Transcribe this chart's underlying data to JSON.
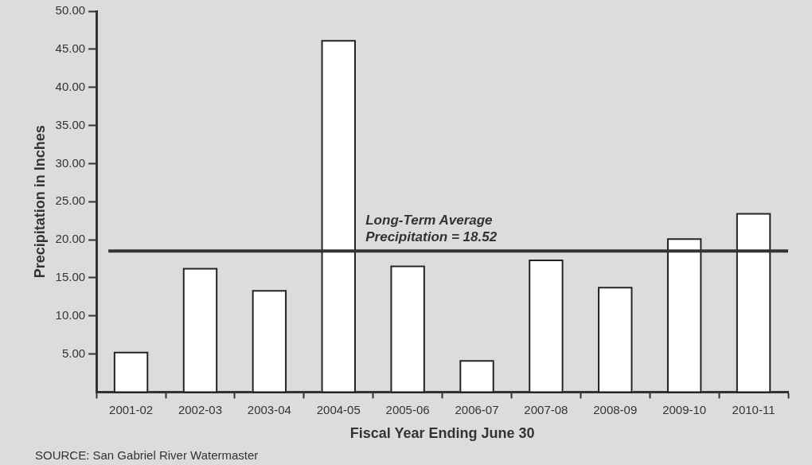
{
  "chart_data": {
    "type": "bar",
    "xlabel": "Fiscal Year Ending June 30",
    "ylabel": "Precipitation in Inches",
    "categories": [
      "2001-02",
      "2002-03",
      "2003-04",
      "2004-05",
      "2005-06",
      "2006-07",
      "2007-08",
      "2008-09",
      "2009-10",
      "2010-11"
    ],
    "values": [
      5.3,
      16.3,
      13.4,
      46.2,
      16.6,
      4.2,
      17.4,
      13.8,
      20.2,
      23.5
    ],
    "color": "#ffffff",
    "ylim": [
      0,
      50
    ],
    "yticks": [
      {
        "value": 5,
        "label": "5.00"
      },
      {
        "value": 10,
        "label": "10.00"
      },
      {
        "value": 15,
        "label": "15.00"
      },
      {
        "value": 20,
        "label": "20.00"
      },
      {
        "value": 25,
        "label": "25.00"
      },
      {
        "value": 30,
        "label": "30.00"
      },
      {
        "value": 35,
        "label": "35.00"
      },
      {
        "value": 40,
        "label": "40.00"
      },
      {
        "value": 45,
        "label": "45.00"
      },
      {
        "value": 50,
        "label": "50.00"
      }
    ],
    "ref_lines": [
      {
        "axis": "y",
        "value": 18.52,
        "label": "Long-Term Average\nPrecipitation = 18.52",
        "color": "#333333"
      }
    ],
    "annotations": [
      "SOURCE: San Gabriel River Watermaster"
    ],
    "grid": false,
    "legend": false
  }
}
